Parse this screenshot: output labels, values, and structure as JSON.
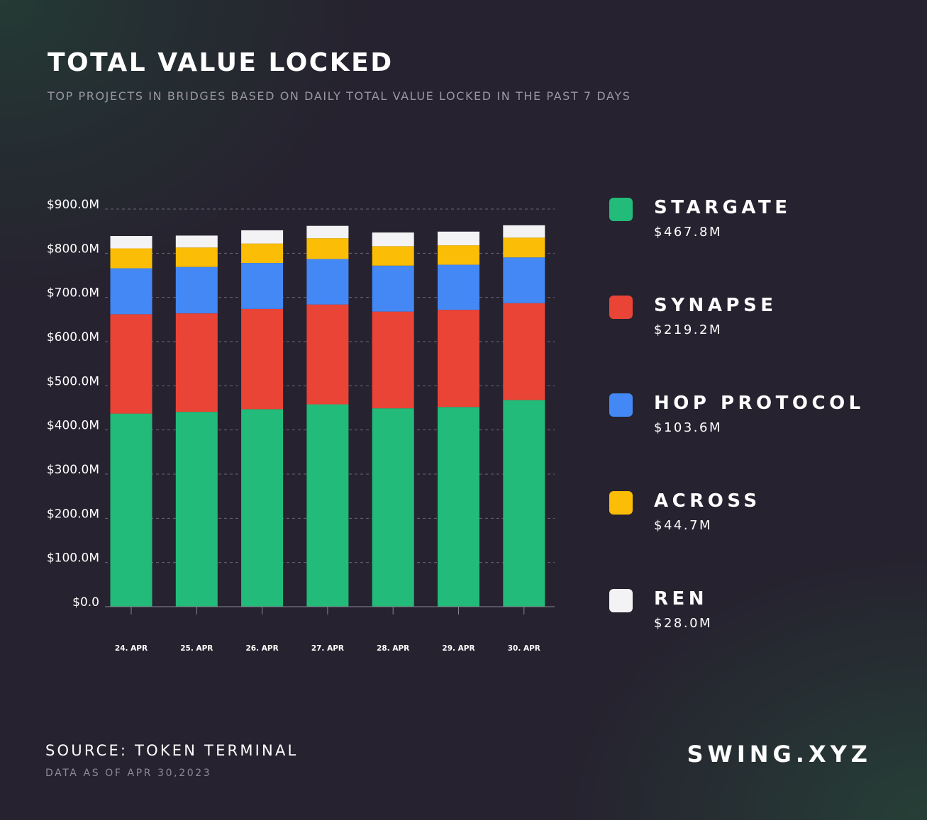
{
  "header": {
    "title": "TOTAL VALUE LOCKED",
    "subtitle": "TOP PROJECTS IN BRIDGES BASED ON DAILY TOTAL VALUE LOCKED IN THE PAST 7 DAYS"
  },
  "colors": {
    "background": "#26222f",
    "stargate": "#22bb7a",
    "synapse": "#e94436",
    "hop_protocol": "#4388f5",
    "across": "#fbbd05",
    "ren": "#f3f2f4",
    "grid": "#6a6676",
    "axis_text": "#ffffff"
  },
  "legend": [
    {
      "name": "STARGATE",
      "value": "$467.8M",
      "color": "#22bb7a"
    },
    {
      "name": "SYNAPSE",
      "value": "$219.2M",
      "color": "#e94436"
    },
    {
      "name": "HOP PROTOCOL",
      "value": "$103.6M",
      "color": "#4388f5"
    },
    {
      "name": "ACROSS",
      "value": "$44.7M",
      "color": "#fbbd05"
    },
    {
      "name": "REN",
      "value": "$28.0M",
      "color": "#f3f2f4"
    }
  ],
  "chart_data": {
    "type": "bar",
    "stacked": true,
    "categories": [
      "24. APR",
      "25. APR",
      "26. APR",
      "27. APR",
      "28. APR",
      "29. APR",
      "30. APR"
    ],
    "series": [
      {
        "name": "STARGATE",
        "color": "#22bb7a",
        "values": [
          437,
          441,
          447,
          458,
          449,
          452,
          467.8
        ]
      },
      {
        "name": "SYNAPSE",
        "color": "#e94436",
        "values": [
          225,
          223,
          227,
          226,
          219,
          220,
          219.2
        ]
      },
      {
        "name": "HOP PROTOCOL",
        "color": "#4388f5",
        "values": [
          104,
          105,
          104,
          103,
          104,
          102,
          103.6
        ]
      },
      {
        "name": "ACROSS",
        "color": "#fbbd05",
        "values": [
          45,
          44,
          44,
          47,
          44,
          44,
          44.7
        ]
      },
      {
        "name": "REN",
        "color": "#f3f2f4",
        "values": [
          28,
          27,
          30,
          28,
          31,
          31,
          28.0
        ]
      }
    ],
    "y_ticks": [
      "$0.0",
      "$100.0M",
      "$200.0M",
      "$300.0M",
      "$400.0M",
      "$500.0M",
      "$600.0M",
      "$700.0M",
      "$800.0M",
      "$900.0M"
    ],
    "ylim": [
      0,
      900
    ],
    "grid": true,
    "legend_position": "right"
  },
  "footer": {
    "source": "SOURCE: TOKEN TERMINAL",
    "as_of": "DATA AS OF APR 30,2023",
    "brand": "SWING.XYZ"
  }
}
